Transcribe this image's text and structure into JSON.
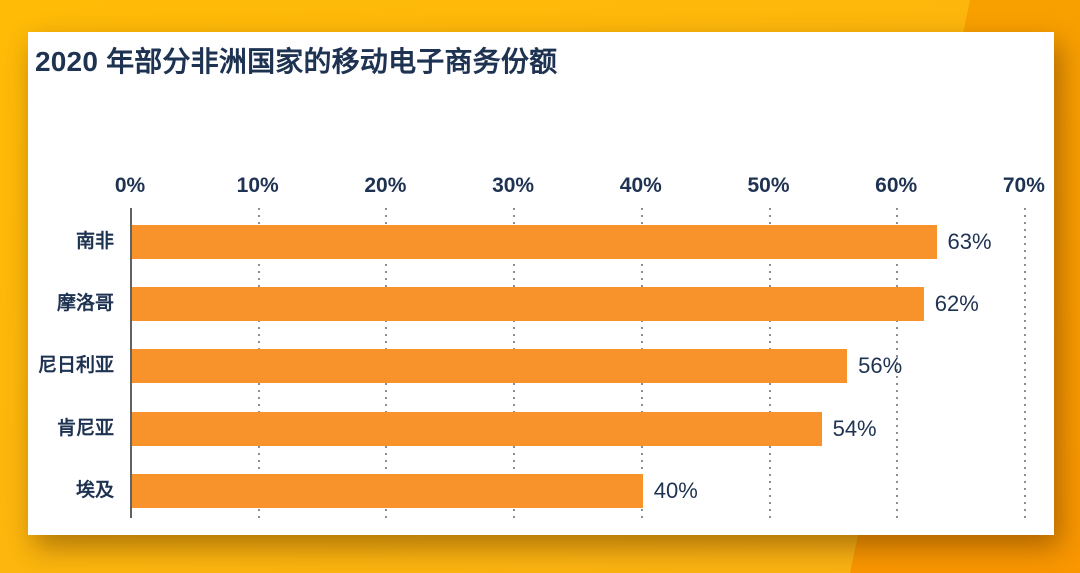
{
  "background": {
    "base_color": "#FDB80E",
    "accent_color": "#F89D00"
  },
  "card": {
    "background_color": "#FFFFFF"
  },
  "chart_data": {
    "type": "bar",
    "orientation": "horizontal",
    "title": "2020 年部分非洲国家的移动电子商务份额",
    "categories": [
      "南非",
      "摩洛哥",
      "尼日利亚",
      "肯尼亚",
      "埃及"
    ],
    "values": [
      63,
      62,
      56,
      54,
      40
    ],
    "value_labels": [
      "63%",
      "62%",
      "56%",
      "54%",
      "40%"
    ],
    "x_ticks": [
      "0%",
      "10%",
      "20%",
      "30%",
      "40%",
      "50%",
      "60%",
      "70%"
    ],
    "xlim": [
      0,
      70
    ],
    "xlabel": "",
    "ylabel": "",
    "grid": "vertical-dotted",
    "legend": "none",
    "bar_color": "#F8932C",
    "text_color": "#1E3252",
    "axis_line_color": "#626262",
    "gridline_color": "#8F8F8F"
  }
}
